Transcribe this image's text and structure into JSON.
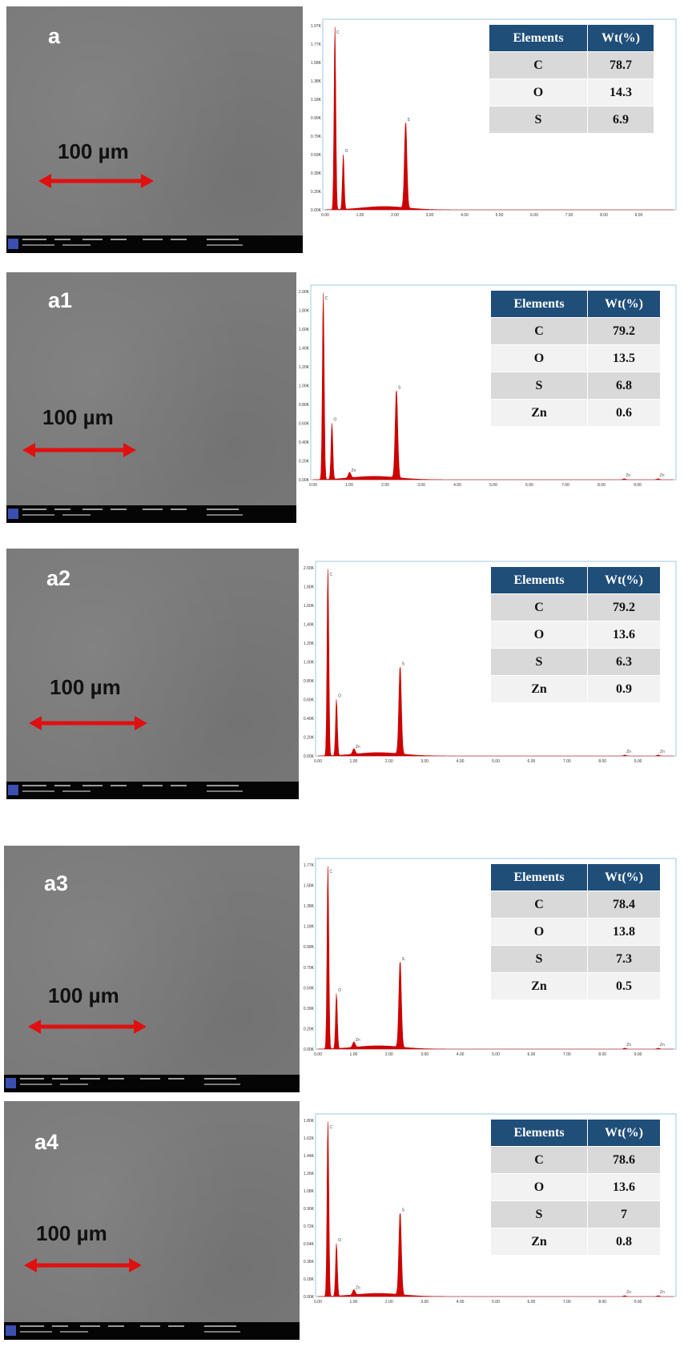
{
  "scale_bar_label": "100 µm",
  "table_headers": [
    "Elements",
    "Wt(%)"
  ],
  "spectrum_axis": {
    "xlim": [
      0,
      10
    ],
    "x_ticks": [
      "0.00",
      "1.00",
      "2.00",
      "3.00",
      "4.00",
      "5.00",
      "6.00",
      "7.00",
      "8.00",
      "9.00"
    ]
  },
  "colors": {
    "spectrum": "#cc0000",
    "table_header": "#1f4e79",
    "arrow": "#e01010"
  },
  "chart_data": [
    {
      "type": "table",
      "panel_label": "a",
      "columns": [
        "Elements",
        "Wt(%)"
      ],
      "rows": [
        [
          "C",
          "78.7"
        ],
        [
          "O",
          "14.3"
        ],
        [
          "S",
          "6.9"
        ]
      ],
      "spectrum": {
        "peaks": [
          {
            "element": "C",
            "energy_keV": 0.28,
            "height": 1.0
          },
          {
            "element": "O",
            "energy_keV": 0.52,
            "height": 0.3
          },
          {
            "element": "S",
            "energy_keV": 2.31,
            "height": 0.47
          }
        ],
        "y_ticks": [
          "0.00K",
          "0.20K",
          "0.39K",
          "0.59K",
          "0.79K",
          "0.99K",
          "1.18K",
          "1.38K",
          "1.58K",
          "1.77K",
          "1.97K"
        ]
      }
    },
    {
      "type": "table",
      "panel_label": "a1",
      "columns": [
        "Elements",
        "Wt(%)"
      ],
      "rows": [
        [
          "C",
          "79.2"
        ],
        [
          "O",
          "13.5"
        ],
        [
          "S",
          "6.8"
        ],
        [
          "Zn",
          "0.6"
        ]
      ],
      "spectrum": {
        "peaks": [
          {
            "element": "C",
            "energy_keV": 0.28,
            "height": 1.0
          },
          {
            "element": "O",
            "energy_keV": 0.52,
            "height": 0.3
          },
          {
            "element": "Zn",
            "energy_keV": 1.01,
            "height": 0.03
          },
          {
            "element": "S",
            "energy_keV": 2.31,
            "height": 0.47
          },
          {
            "element": "Zn",
            "energy_keV": 8.63,
            "height": 0.005
          },
          {
            "element": "Zn",
            "energy_keV": 9.57,
            "height": 0.005
          }
        ],
        "y_ticks": [
          "0.00K",
          "0.20K",
          "0.40K",
          "0.60K",
          "0.80K",
          "1.00K",
          "1.20K",
          "1.40K",
          "1.60K",
          "1.80K",
          "2.00K"
        ]
      }
    },
    {
      "type": "table",
      "panel_label": "a2",
      "columns": [
        "Elements",
        "Wt(%)"
      ],
      "rows": [
        [
          "C",
          "79.2"
        ],
        [
          "O",
          "13.6"
        ],
        [
          "S",
          "6.3"
        ],
        [
          "Zn",
          "0.9"
        ]
      ],
      "spectrum": {
        "peaks": [
          {
            "element": "C",
            "energy_keV": 0.28,
            "height": 1.0
          },
          {
            "element": "O",
            "energy_keV": 0.52,
            "height": 0.3
          },
          {
            "element": "Zn",
            "energy_keV": 1.01,
            "height": 0.03
          },
          {
            "element": "S",
            "energy_keV": 2.31,
            "height": 0.47
          },
          {
            "element": "Zn",
            "energy_keV": 8.63,
            "height": 0.005
          },
          {
            "element": "Zn",
            "energy_keV": 9.57,
            "height": 0.005
          }
        ],
        "y_ticks": [
          "0.00K",
          "0.20K",
          "0.40K",
          "0.60K",
          "0.80K",
          "1.00K",
          "1.20K",
          "1.40K",
          "1.60K",
          "1.80K",
          "2.00K"
        ]
      }
    },
    {
      "type": "table",
      "panel_label": "a3",
      "columns": [
        "Elements",
        "Wt(%)"
      ],
      "rows": [
        [
          "C",
          "78.4"
        ],
        [
          "O",
          "13.8"
        ],
        [
          "S",
          "7.3"
        ],
        [
          "Zn",
          "0.5"
        ]
      ],
      "spectrum": {
        "peaks": [
          {
            "element": "C",
            "energy_keV": 0.28,
            "height": 1.0
          },
          {
            "element": "O",
            "energy_keV": 0.52,
            "height": 0.3
          },
          {
            "element": "Zn",
            "energy_keV": 1.01,
            "height": 0.03
          },
          {
            "element": "S",
            "energy_keV": 2.31,
            "height": 0.47
          },
          {
            "element": "Zn",
            "energy_keV": 8.63,
            "height": 0.005
          },
          {
            "element": "Zn",
            "energy_keV": 9.57,
            "height": 0.005
          }
        ],
        "y_ticks": [
          "0.00K",
          "0.20K",
          "0.39K",
          "0.59K",
          "0.79K",
          "0.99K",
          "1.18K",
          "1.38K",
          "1.58K",
          "1.77K"
        ]
      }
    },
    {
      "type": "table",
      "panel_label": "a4",
      "columns": [
        "Elements",
        "Wt(%)"
      ],
      "rows": [
        [
          "C",
          "78.6"
        ],
        [
          "O",
          "13.6"
        ],
        [
          "S",
          "7"
        ],
        [
          "Zn",
          "0.8"
        ]
      ],
      "spectrum": {
        "peaks": [
          {
            "element": "C",
            "energy_keV": 0.28,
            "height": 1.0
          },
          {
            "element": "O",
            "energy_keV": 0.52,
            "height": 0.3
          },
          {
            "element": "Zn",
            "energy_keV": 1.01,
            "height": 0.03
          },
          {
            "element": "S",
            "energy_keV": 2.31,
            "height": 0.47
          },
          {
            "element": "Zn",
            "energy_keV": 8.63,
            "height": 0.005
          },
          {
            "element": "Zn",
            "energy_keV": 9.57,
            "height": 0.005
          }
        ],
        "y_ticks": [
          "0.00K",
          "0.18K",
          "0.36K",
          "0.54K",
          "0.72K",
          "0.90K",
          "1.08K",
          "1.26K",
          "1.44K",
          "1.62K",
          "1.80K"
        ]
      }
    }
  ]
}
